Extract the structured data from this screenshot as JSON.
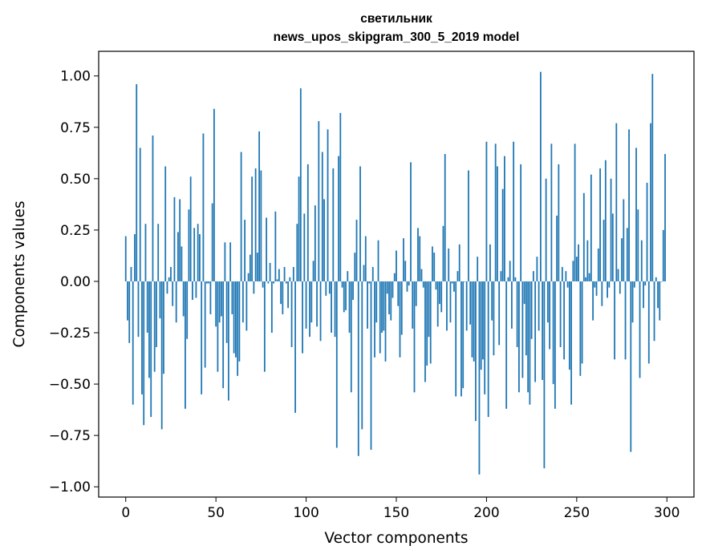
{
  "chart_data": {
    "type": "bar",
    "title_line1": "светильник",
    "title_line2": "news_upos_skipgram_300_5_2019 model",
    "xlabel": "Vector components",
    "ylabel": "Components values",
    "xlim": [
      -15,
      315
    ],
    "ylim": [
      -1.05,
      1.12
    ],
    "xticks": [
      0,
      50,
      100,
      150,
      200,
      250,
      300
    ],
    "yticks": [
      -1.0,
      -0.75,
      -0.5,
      -0.25,
      0.0,
      0.25,
      0.5,
      0.75,
      1.0
    ],
    "ytick_labels": [
      "−1.00",
      "−0.75",
      "−0.50",
      "−0.25",
      "0.00",
      "0.25",
      "0.50",
      "0.75",
      "1.00"
    ],
    "grid": false,
    "color": "#1f77b4",
    "values": [
      0.22,
      -0.19,
      -0.3,
      0.07,
      -0.6,
      0.23,
      0.96,
      -0.27,
      0.65,
      -0.55,
      -0.7,
      0.28,
      -0.25,
      -0.47,
      -0.66,
      0.71,
      -0.44,
      -0.32,
      0.28,
      -0.18,
      -0.72,
      -0.45,
      0.56,
      -0.06,
      0.02,
      0.07,
      -0.12,
      0.41,
      -0.2,
      0.24,
      0.4,
      0.17,
      -0.17,
      -0.62,
      -0.28,
      0.35,
      0.51,
      -0.09,
      0.26,
      -0.08,
      0.28,
      0.23,
      -0.55,
      0.72,
      -0.42,
      -0.01,
      -0.01,
      -0.16,
      0.38,
      0.84,
      -0.22,
      -0.44,
      -0.2,
      -0.17,
      -0.52,
      0.19,
      -0.3,
      -0.58,
      0.19,
      -0.16,
      -0.35,
      -0.37,
      -0.46,
      -0.39,
      0.63,
      -0.2,
      0.3,
      -0.24,
      0.04,
      0.13,
      0.51,
      -0.06,
      0.55,
      0.14,
      0.73,
      0.54,
      -0.03,
      -0.44,
      0.31,
      -0.01,
      0.09,
      -0.25,
      -0.01,
      0.34,
      0.01,
      0.06,
      -0.11,
      -0.16,
      0.07,
      -0.01,
      -0.13,
      0.02,
      -0.32,
      0.07,
      -0.64,
      0.28,
      0.51,
      0.94,
      -0.35,
      0.33,
      -0.23,
      0.57,
      -0.27,
      -0.2,
      0.1,
      0.37,
      -0.22,
      0.78,
      -0.29,
      0.63,
      0.4,
      -0.07,
      0.74,
      -0.06,
      -0.25,
      0.55,
      -0.27,
      -0.81,
      0.61,
      0.82,
      -0.03,
      -0.15,
      -0.14,
      0.05,
      -0.25,
      -0.54,
      -0.09,
      0.14,
      0.3,
      -0.85,
      0.56,
      -0.72,
      0.08,
      0.22,
      -0.23,
      -0.01,
      -0.82,
      0.07,
      -0.37,
      -0.2,
      0.2,
      -0.35,
      -0.25,
      -0.24,
      -0.39,
      -0.06,
      -0.16,
      -0.19,
      -0.08,
      0.04,
      0.15,
      -0.12,
      -0.37,
      -0.26,
      0.21,
      0.1,
      -0.05,
      -0.02,
      0.58,
      -0.23,
      -0.54,
      -0.12,
      0.26,
      0.22,
      0.06,
      -0.03,
      -0.49,
      -0.41,
      -0.27,
      -0.4,
      0.17,
      0.14,
      -0.04,
      -0.22,
      -0.11,
      -0.15,
      0.27,
      0.62,
      -0.24,
      0.16,
      -0.2,
      -0.01,
      -0.05,
      -0.56,
      0.05,
      0.18,
      -0.56,
      -0.52,
      0.0,
      -0.24,
      0.54,
      -0.21,
      -0.37,
      -0.39,
      -0.68,
      0.12,
      -0.94,
      -0.43,
      -0.38,
      -0.55,
      0.68,
      -0.66,
      0.18,
      -0.19,
      -0.36,
      0.67,
      0.56,
      -0.31,
      0.05,
      0.45,
      0.61,
      -0.62,
      0.02,
      0.1,
      -0.23,
      0.68,
      0.02,
      -0.32,
      -0.54,
      0.57,
      -0.47,
      -0.11,
      -0.36,
      -0.54,
      -0.6,
      -0.28,
      0.05,
      -0.49,
      0.12,
      -0.24,
      1.02,
      -0.48,
      -0.91,
      0.5,
      -0.2,
      -0.33,
      0.67,
      -0.5,
      -0.62,
      0.32,
      0.57,
      -0.32,
      0.07,
      -0.38,
      0.05,
      -0.03,
      -0.43,
      -0.6,
      0.1,
      0.67,
      0.12,
      0.18,
      -0.46,
      -0.4,
      0.43,
      0.02,
      0.2,
      0.04,
      0.52,
      -0.19,
      -0.03,
      -0.07,
      0.16,
      0.55,
      -0.12,
      0.3,
      0.59,
      -0.08,
      -0.03,
      0.5,
      0.33,
      -0.38,
      0.77,
      0.06,
      -0.06,
      0.21,
      0.4,
      -0.38,
      0.26,
      0.74,
      -0.83,
      -0.2,
      -0.03,
      0.65,
      0.35,
      -0.47,
      0.2,
      -0.13,
      -0.02,
      0.48,
      -0.4,
      0.77,
      1.01,
      -0.29,
      0.02,
      -0.13,
      -0.19,
      0.0,
      0.25,
      0.62
    ]
  }
}
